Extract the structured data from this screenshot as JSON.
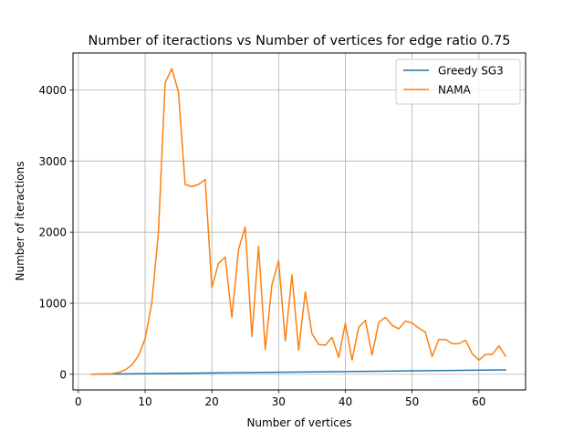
{
  "chart_data": {
    "type": "line",
    "title": "Number of iteractions vs Number of vertices for edge ratio 0.75",
    "xlabel": "Number of vertices",
    "ylabel": "Number of iteractions",
    "xlim": [
      -0.8,
      67.0
    ],
    "ylim": [
      -220,
      4520
    ],
    "xticks": [
      0,
      10,
      20,
      30,
      40,
      50,
      60
    ],
    "yticks": [
      0,
      1000,
      2000,
      3000,
      4000
    ],
    "grid": true,
    "legend_position": "top-right",
    "series": [
      {
        "name": "Greedy SG3",
        "color": "#1f77b4",
        "x": [
          2,
          64
        ],
        "y": [
          2,
          62
        ]
      },
      {
        "name": "NAMA",
        "color": "#ff7f0e",
        "x": [
          2,
          3,
          4,
          5,
          6,
          7,
          8,
          9,
          10,
          11,
          12,
          13,
          14,
          15,
          16,
          17,
          18,
          19,
          20,
          21,
          22,
          23,
          24,
          25,
          26,
          27,
          28,
          29,
          30,
          31,
          32,
          33,
          34,
          35,
          36,
          37,
          38,
          39,
          40,
          41,
          42,
          43,
          44,
          45,
          46,
          47,
          48,
          49,
          50,
          51,
          52,
          53,
          54,
          55,
          56,
          57,
          58,
          59,
          60,
          61,
          62,
          63,
          64
        ],
        "y": [
          0,
          2,
          5,
          10,
          25,
          60,
          130,
          260,
          500,
          1000,
          2000,
          4100,
          4300,
          3970,
          2670,
          2640,
          2670,
          2740,
          1220,
          1560,
          1650,
          800,
          1760,
          2070,
          530,
          1800,
          350,
          1260,
          1600,
          470,
          1400,
          340,
          1160,
          570,
          420,
          410,
          520,
          240,
          720,
          200,
          660,
          760,
          270,
          730,
          800,
          690,
          640,
          750,
          720,
          650,
          590,
          250,
          490,
          490,
          430,
          430,
          480,
          290,
          200,
          280,
          280,
          400,
          255
        ]
      }
    ]
  }
}
